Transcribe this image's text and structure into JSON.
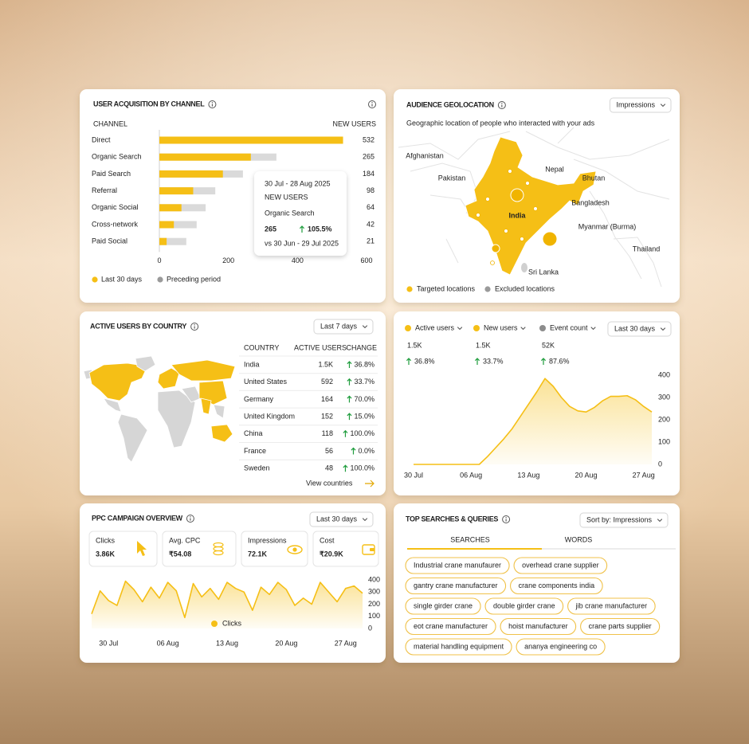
{
  "user_acquisition": {
    "title": "USER ACQUISITION BY CHANNEL",
    "channel_header": "CHANNEL",
    "value_header": "NEW USERS",
    "chart": {
      "type": "bar",
      "categories": [
        "Direct",
        "Organic Search",
        "Paid Search",
        "Referral",
        "Organic Social",
        "Cross-network",
        "Paid Social"
      ],
      "series": [
        {
          "name": "Last 30 days",
          "color": "#f5bf16",
          "values": [
            532,
            265,
            184,
            98,
            64,
            42,
            21
          ]
        },
        {
          "name": "Preceding period",
          "color": "#dadada",
          "values": [
            508,
            339,
            242,
            162,
            134,
            108,
            78
          ]
        }
      ],
      "xlim": [
        0,
        600
      ],
      "xticks": [
        0,
        200,
        400,
        600
      ]
    },
    "tooltip": {
      "period": "30 Jul - 28 Aug 2025",
      "metric": "NEW USERS",
      "change": "105.5%",
      "comparison": "vs 30 Jun - 29 Jul 2025"
    }
  },
  "geolocation": {
    "title": "AUDIENCE GEOLOCATION",
    "dropdown": "Impressions",
    "subtitle": "Geographic location of people who interacted with your ads",
    "map_labels": [
      "Afghanistan",
      "Pakistan",
      "Nepal",
      "Bhutan",
      "Bangladesh",
      "India",
      "Myanmar (Burma)",
      "Thailand",
      "Sri Lanka"
    ],
    "legend": [
      {
        "name": "Targeted locations",
        "color": "#f5bf16"
      },
      {
        "name": "Excluded locations",
        "color": "#9a9a9a"
      }
    ]
  },
  "country_users": {
    "title": "ACTIVE USERS BY COUNTRY",
    "dropdown": "Last 7 days",
    "columns": [
      "COUNTRY",
      "ACTIVE USERS",
      "CHANGE"
    ],
    "rows": [
      [
        "India",
        "1.5K",
        "36.8%"
      ],
      [
        "United States",
        592,
        "33.7%"
      ],
      [
        "Germany",
        164,
        "70.0%"
      ],
      [
        "United Kingdom",
        152,
        "15.0%"
      ],
      [
        "China",
        118,
        "100.0%"
      ],
      [
        "France",
        56,
        "0.0%"
      ],
      [
        "Sweden",
        48,
        "100.0%"
      ]
    ],
    "link": "View countries"
  },
  "trends": {
    "metrics": [
      {
        "name": "Active users",
        "color": "#f5bf16",
        "total": "1.5K",
        "change": "36.8%"
      },
      {
        "name": "New users",
        "color": "#f5bf16",
        "total": "1.5K",
        "change": "33.7%"
      },
      {
        "name": "Event count",
        "color": "#8c8c8c",
        "total": "52K",
        "change": "87.6%"
      }
    ],
    "dropdown": "Last 30 days",
    "chart": {
      "type": "area",
      "categories": [
        "30 Jul",
        null,
        null,
        null,
        null,
        null,
        null,
        "06 Aug",
        null,
        null,
        null,
        null,
        null,
        null,
        "13 Aug",
        null,
        null,
        null,
        null,
        null,
        null,
        "20 Aug",
        null,
        null,
        null,
        null,
        null,
        null,
        "27 Aug",
        null
      ],
      "series": [
        {
          "color": "#f5bf16",
          "values": [
            0,
            0,
            0,
            0,
            0,
            0,
            0,
            0,
            0,
            35,
            75,
            115,
            160,
            215,
            270,
            325,
            385,
            350,
            300,
            260,
            240,
            235,
            255,
            285,
            305,
            305,
            308,
            290,
            260,
            235
          ]
        }
      ],
      "ylim": [
        0,
        400
      ],
      "yticks": [
        0,
        100,
        200,
        300,
        400
      ]
    }
  },
  "ppc": {
    "title": "PPC CAMPAIGN OVERVIEW",
    "dropdown": "Last 30 days",
    "kpis": [
      {
        "label": "Clicks",
        "value": "3.86K"
      },
      {
        "label": "Avg. CPC",
        "value": "₹54.08"
      },
      {
        "label": "Impressions",
        "value": "72.1K"
      },
      {
        "label": "Cost",
        "value": "₹20.9K"
      }
    ],
    "chart": {
      "type": "area",
      "categories": [
        null,
        null,
        "30 Jul",
        null,
        null,
        null,
        null,
        null,
        null,
        "06 Aug",
        null,
        null,
        null,
        null,
        null,
        null,
        "13 Aug",
        null,
        null,
        null,
        null,
        null,
        null,
        "20 Aug",
        null,
        null,
        null,
        null,
        null,
        null,
        "27 Aug",
        null,
        null
      ],
      "series": [
        {
          "name": "Clicks",
          "color": "#f5bf16",
          "values": [
            120,
            310,
            230,
            190,
            390,
            320,
            220,
            340,
            250,
            380,
            310,
            90,
            370,
            260,
            330,
            240,
            380,
            330,
            300,
            150,
            340,
            280,
            380,
            320,
            190,
            250,
            200,
            380,
            300,
            220,
            330,
            350,
            290
          ]
        }
      ],
      "ylim": [
        0,
        400
      ],
      "yticks": [
        0,
        100,
        200,
        300,
        400
      ]
    }
  },
  "searches": {
    "title": "TOP SEARCHES & QUERIES",
    "dropdown": "Sort by: Impressions",
    "tabs": [
      "SEARCHES",
      "WORDS"
    ],
    "chips": [
      "Industrial crane manufaurer",
      "overhead crane supplier",
      "gantry crane manufacturer",
      "crane components india",
      "single girder crane",
      "double girder crane",
      "jib crane manufacturer",
      "eot crane manufacturer",
      "hoist manufacturer",
      "crane parts supplier",
      "material handling equipment",
      "ananya engineering co"
    ]
  }
}
